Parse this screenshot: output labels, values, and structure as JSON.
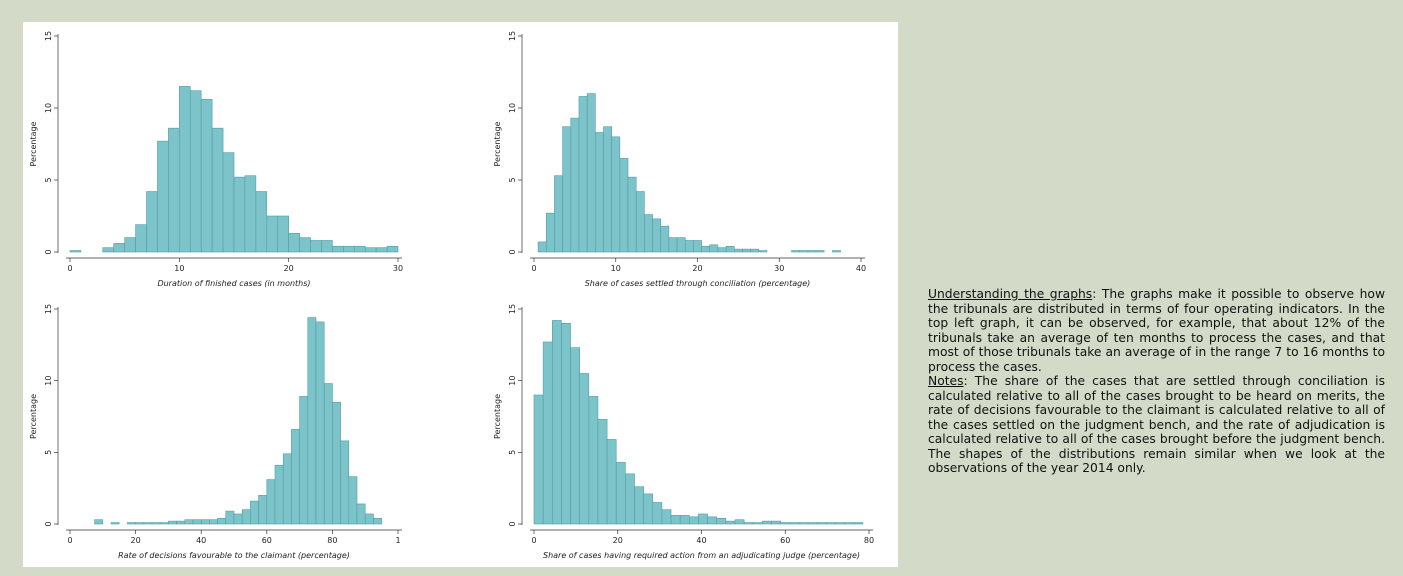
{
  "notes": {
    "understanding_heading": "Understanding the graphs",
    "understanding_text": ": The graphs make it possible to observe how the tribunals are distributed in terms of four operating indicators. In the top left graph, it can be observed, for example, that about 12% of the tribunals take an average of ten months to process the cases, and that most of those tribunals take an average of in the range 7 to 16 months to process the cases.",
    "notes_heading": "Notes",
    "notes_text": ": The share of the cases that are settled through conciliation is calculated relative to all of the cases brought to be heard on merits, the rate of decisions favourable to the claimant is calculated relative to all of the cases settled on the judgment bench, and the rate of adjudication is calculated relative to all of the cases brought before the judgment bench. The shapes of the distributions remain similar when we look at the observations of the year 2014 only."
  },
  "colors": {
    "bar_fill": "#7cc4ca",
    "bar_stroke": "#4f9ea5",
    "axis": "#333333",
    "panel": "#ffffff",
    "background": "#d3dbc8"
  },
  "chart_data": [
    {
      "type": "bar",
      "xlabel": "Duration of finished cases (in months)",
      "ylabel": "Percentage",
      "xlim": [
        0,
        30
      ],
      "ylim": [
        0,
        15
      ],
      "xticks": [
        "0",
        "10",
        "20",
        "30"
      ],
      "yticks": [
        "0",
        "5",
        "10",
        "15"
      ],
      "bin_width": 1.0,
      "bin_starts": [
        0,
        3,
        4,
        5,
        6,
        7,
        8,
        9,
        10,
        11,
        12,
        13,
        14,
        15,
        16,
        17,
        18,
        19,
        20,
        21,
        22,
        23,
        24,
        25,
        26,
        27,
        28,
        29
      ],
      "values": [
        0.1,
        0.3,
        0.6,
        1.0,
        1.9,
        4.2,
        7.7,
        8.6,
        11.5,
        11.2,
        10.6,
        8.6,
        6.9,
        5.2,
        5.3,
        4.2,
        2.5,
        2.5,
        1.3,
        1.0,
        0.8,
        0.8,
        0.4,
        0.4,
        0.4,
        0.3,
        0.3,
        0.4
      ]
    },
    {
      "type": "bar",
      "xlabel": "Share of cases settled through conciliation (percentage)",
      "ylabel": "Percentage",
      "xlim": [
        0,
        40
      ],
      "ylim": [
        0,
        15
      ],
      "xticks": [
        "0",
        "10",
        "20",
        "30",
        "40"
      ],
      "yticks": [
        "0",
        "5",
        "10",
        "15"
      ],
      "bin_width": 1.0,
      "bin_starts": [
        0.5,
        1.5,
        2.5,
        3.5,
        4.5,
        5.5,
        6.5,
        7.5,
        8.5,
        9.5,
        10.5,
        11.5,
        12.5,
        13.5,
        14.5,
        15.5,
        16.5,
        17.5,
        18.5,
        19.5,
        20.5,
        21.5,
        22.5,
        23.5,
        24.5,
        25.5,
        26.5,
        27.5,
        31.5,
        32.5,
        33.5,
        34.5,
        36.5
      ],
      "values": [
        0.7,
        2.7,
        5.3,
        8.7,
        9.3,
        10.8,
        11.0,
        8.3,
        8.7,
        8.0,
        6.5,
        5.2,
        4.2,
        2.6,
        2.3,
        1.8,
        1.0,
        1.0,
        0.8,
        0.8,
        0.4,
        0.5,
        0.3,
        0.4,
        0.2,
        0.2,
        0.2,
        0.1,
        0.1,
        0.1,
        0.1,
        0.1,
        0.1
      ]
    },
    {
      "type": "bar",
      "xlabel": "Rate of decisions favourable to the claimant (percentage)",
      "ylabel": "Percentage",
      "xlim": [
        0,
        100
      ],
      "ylim": [
        0,
        15
      ],
      "xticks": [
        "0",
        "20",
        "40",
        "60",
        "80",
        "1"
      ],
      "yticks": [
        "0",
        "5",
        "10",
        "15"
      ],
      "bin_width": 2.5,
      "bin_starts": [
        7.5,
        12.5,
        17.5,
        20.0,
        22.5,
        25.0,
        27.5,
        30.0,
        32.5,
        35.0,
        37.5,
        40.0,
        42.5,
        45.0,
        47.5,
        50.0,
        52.5,
        55.0,
        57.5,
        60.0,
        62.5,
        65.0,
        67.5,
        70.0,
        72.5,
        75.0,
        77.5,
        80.0,
        82.5,
        85.0,
        87.5,
        90.0,
        92.5
      ],
      "values": [
        0.3,
        0.1,
        0.1,
        0.1,
        0.1,
        0.1,
        0.1,
        0.2,
        0.2,
        0.3,
        0.3,
        0.3,
        0.3,
        0.4,
        0.9,
        0.7,
        1.0,
        1.6,
        2.0,
        3.1,
        4.1,
        4.9,
        6.6,
        8.9,
        14.4,
        14.1,
        9.8,
        8.5,
        5.8,
        3.3,
        1.4,
        0.7,
        0.4
      ]
    },
    {
      "type": "bar",
      "xlabel": "Share of cases having required action from an adjudicating judge (percentage)",
      "ylabel": "Percentage",
      "xlim": [
        0,
        88
      ],
      "ylim": [
        0,
        15
      ],
      "xticks": [
        "0",
        "20",
        "40",
        "60",
        "80"
      ],
      "yticks": [
        "0",
        "5",
        "10",
        "15"
      ],
      "bin_width": 2.4,
      "bin_starts": [
        0.0,
        2.4,
        4.8,
        7.2,
        9.6,
        12.0,
        14.4,
        16.8,
        19.2,
        21.6,
        24.0,
        26.4,
        28.8,
        31.2,
        33.6,
        36.0,
        38.4,
        40.8,
        43.2,
        45.6,
        48.0,
        50.4,
        52.8,
        55.2,
        57.6,
        60.0,
        62.4,
        64.8,
        67.2,
        69.6,
        72.0,
        74.4,
        76.8,
        79.2,
        81.6,
        84.0
      ],
      "values": [
        9.0,
        12.7,
        14.2,
        14.0,
        12.3,
        10.5,
        8.9,
        7.3,
        5.9,
        4.3,
        3.5,
        2.6,
        2.1,
        1.5,
        1.0,
        0.6,
        0.6,
        0.5,
        0.7,
        0.5,
        0.4,
        0.2,
        0.3,
        0.1,
        0.1,
        0.2,
        0.2,
        0.1,
        0.1,
        0.1,
        0.1,
        0.1,
        0.1,
        0.1,
        0.1,
        0.1
      ]
    }
  ]
}
